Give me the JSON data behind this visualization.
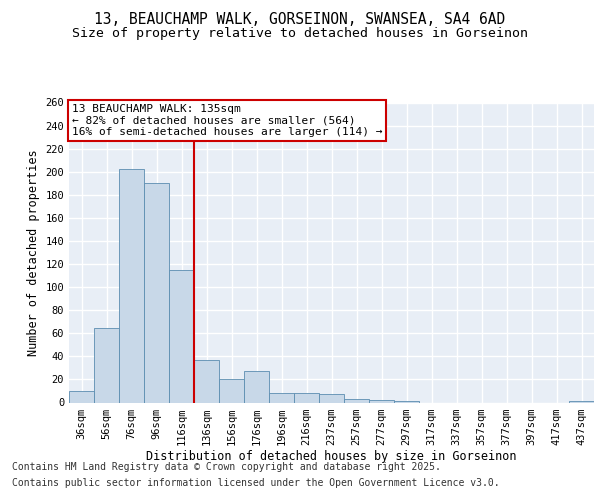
{
  "title_line1": "13, BEAUCHAMP WALK, GORSEINON, SWANSEA, SA4 6AD",
  "title_line2": "Size of property relative to detached houses in Gorseinon",
  "xlabel": "Distribution of detached houses by size in Gorseinon",
  "ylabel": "Number of detached properties",
  "categories": [
    "36sqm",
    "56sqm",
    "76sqm",
    "96sqm",
    "116sqm",
    "136sqm",
    "156sqm",
    "176sqm",
    "196sqm",
    "216sqm",
    "237sqm",
    "257sqm",
    "277sqm",
    "297sqm",
    "317sqm",
    "337sqm",
    "357sqm",
    "377sqm",
    "397sqm",
    "417sqm",
    "437sqm"
  ],
  "values": [
    10,
    65,
    202,
    190,
    115,
    37,
    20,
    27,
    8,
    8,
    7,
    3,
    2,
    1,
    0,
    0,
    0,
    0,
    0,
    0,
    1
  ],
  "bar_color": "#c8d8e8",
  "bar_edge_color": "#5b8db0",
  "vline_x": 4.5,
  "vline_color": "#cc0000",
  "annotation_text": "13 BEAUCHAMP WALK: 135sqm\n← 82% of detached houses are smaller (564)\n16% of semi-detached houses are larger (114) →",
  "annotation_box_color": "#cc0000",
  "background_color": "#e8eef6",
  "grid_color": "#ffffff",
  "ylim": [
    0,
    260
  ],
  "yticks": [
    0,
    20,
    40,
    60,
    80,
    100,
    120,
    140,
    160,
    180,
    200,
    220,
    240,
    260
  ],
  "footnote_line1": "Contains HM Land Registry data © Crown copyright and database right 2025.",
  "footnote_line2": "Contains public sector information licensed under the Open Government Licence v3.0.",
  "title_fontsize": 10.5,
  "subtitle_fontsize": 9.5,
  "axis_label_fontsize": 8.5,
  "tick_fontsize": 7.5,
  "annotation_fontsize": 8,
  "footnote_fontsize": 7
}
